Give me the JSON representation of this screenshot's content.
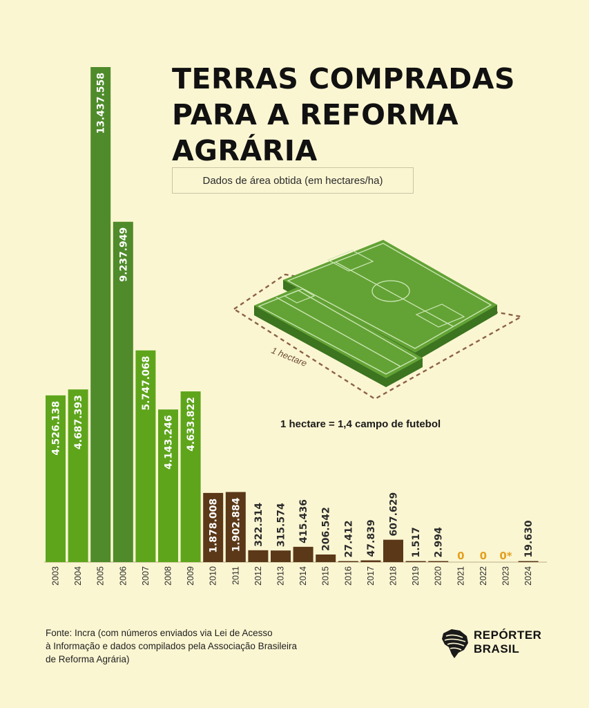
{
  "title_lines": [
    "TERRAS COMPRADAS",
    "PARA A REFORMA",
    "AGRÁRIA"
  ],
  "subtitle": "Dados de área obtida (em hectares/ha)",
  "illustration": {
    "hectare_label": "1 hectare",
    "equivalence": "1 hectare = 1,4 campo de futebol"
  },
  "source_lines": [
    "Fonte: Incra (com números enviados via Lei de Acesso",
    "à Informação e dados compilados pela Associação Brasileira",
    "de Reforma Agrária)"
  ],
  "logo": {
    "line1": "REPÓRTER",
    "line2": "BRASIL"
  },
  "colors": {
    "background": "#fbf6d2",
    "bar_green_light": "#5ea51c",
    "bar_green_dark": "#4f8b2b",
    "bar_brown": "#5a3818",
    "zero_label": "#e3a020",
    "field_green": "#5f9e33",
    "dashed_outline": "#8b6247"
  },
  "chart_data": {
    "type": "bar",
    "title": "TERRAS COMPRADAS PARA A REFORMA AGRÁRIA",
    "subtitle": "Dados de área obtida (em hectares/ha)",
    "xlabel": "",
    "ylabel": "",
    "grid": false,
    "legend": "none",
    "categories": [
      "2003",
      "2004",
      "2005",
      "2006",
      "2007",
      "2008",
      "2009",
      "2010",
      "2011",
      "2012",
      "2013",
      "2014",
      "2015",
      "2016",
      "2017",
      "2018",
      "2019",
      "2020",
      "2021",
      "2022",
      "2023",
      "2024"
    ],
    "values": [
      4526138,
      4687393,
      13437558,
      9237949,
      5747068,
      4143246,
      4633822,
      1878008,
      1902884,
      322314,
      315574,
      415436,
      206542,
      27412,
      47839,
      607629,
      1517,
      2994,
      0,
      0,
      0,
      19630
    ],
    "labels": [
      "4.526.138",
      "4.687.393",
      "13.437.558",
      "9.237.949",
      "5.747.068",
      "4.143.246",
      "4.633.822",
      "1.878.008",
      "1.902.884",
      "322.314",
      "315.574",
      "415.436",
      "206.542",
      "27.412",
      "47.839",
      "607.629",
      "1.517",
      "2.994",
      "0",
      "0",
      "0*",
      "19.630"
    ]
  }
}
